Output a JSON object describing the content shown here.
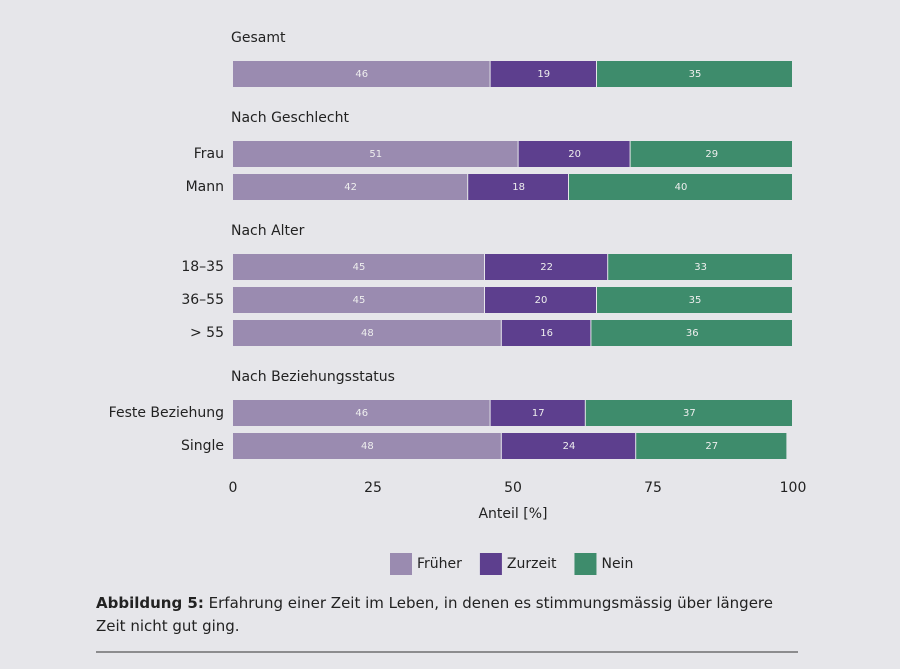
{
  "chart_data": {
    "type": "stacked-bar-horizontal",
    "groups": [
      {
        "title": "Gesamt",
        "categories": [
          null
        ]
      },
      {
        "title": "Nach Geschlecht",
        "categories": [
          "Frau",
          "Mann"
        ]
      },
      {
        "title": "Nach Alter",
        "categories": [
          "18–35",
          "36–55",
          "> 55"
        ]
      },
      {
        "title": "Nach Beziehungsstatus",
        "categories": [
          "Feste Beziehung",
          "Single"
        ]
      }
    ],
    "series": [
      {
        "name": "Früher",
        "color": "#9a8bb0",
        "values": [
          46,
          51,
          42,
          45,
          45,
          48,
          46,
          48
        ]
      },
      {
        "name": "Zurzeit",
        "color": "#5d3f8e",
        "values": [
          19,
          20,
          18,
          22,
          20,
          16,
          17,
          24
        ]
      },
      {
        "name": "Nein",
        "color": "#3e8c6c",
        "values": [
          35,
          29,
          40,
          33,
          35,
          36,
          37,
          27
        ]
      }
    ],
    "xlim": [
      0,
      100
    ],
    "xticks": [
      0,
      25,
      50,
      75,
      100
    ],
    "xlabel": "Anteil [%]",
    "legend": "bottom"
  },
  "caption": {
    "label": "Abbildung 5:",
    "text": "Erfahrung einer Zeit im Leben, in denen es stimmungsmässig über längere Zeit nicht gut ging."
  }
}
